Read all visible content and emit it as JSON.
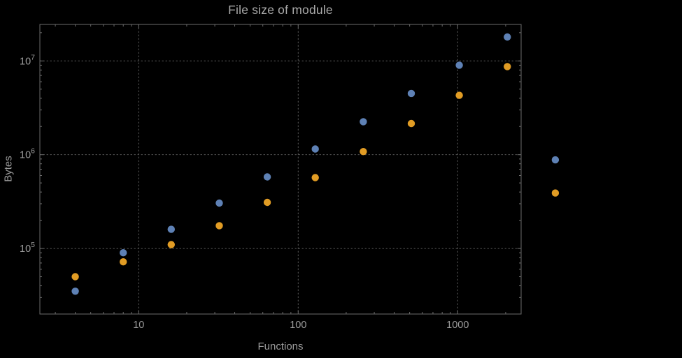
{
  "chart_data": {
    "type": "scatter",
    "title": "File size of module",
    "xlabel": "Functions",
    "ylabel": "Bytes",
    "x_scale": "log",
    "y_scale": "log",
    "x_range": [
      2.4,
      2500
    ],
    "y_range": [
      20000,
      24500000
    ],
    "grid": true,
    "frame": true,
    "legend": "none",
    "x_ticks": [
      {
        "value": 10,
        "label": "10"
      },
      {
        "value": 100,
        "label": "100"
      },
      {
        "value": 1000,
        "label": "1000"
      }
    ],
    "y_ticks": [
      {
        "value": 100000,
        "base": "10",
        "exp": "5"
      },
      {
        "value": 1000000,
        "base": "10",
        "exp": "6"
      },
      {
        "value": 10000000,
        "base": "10",
        "exp": "7"
      }
    ],
    "colors": {
      "frame": "#6c6c6c",
      "grid": "#5b5b5b",
      "tick_text": "#9c9c9c",
      "title_text": "#aaaaaa",
      "series1": "#5E81B5",
      "series2": "#E19C24"
    },
    "series": [
      {
        "name": "series-1-blue",
        "color": "#5E81B5",
        "points": [
          [
            4,
            35000
          ],
          [
            8,
            90000
          ],
          [
            16,
            160000
          ],
          [
            32,
            305000
          ],
          [
            64,
            580000
          ],
          [
            128,
            1150000
          ],
          [
            256,
            2250000
          ],
          [
            512,
            4500000
          ],
          [
            1024,
            9000000
          ],
          [
            2048,
            18000000
          ],
          [
            4096,
            880000
          ]
        ]
      },
      {
        "name": "series-2-orange",
        "color": "#E19C24",
        "points": [
          [
            4,
            50000
          ],
          [
            8,
            72000
          ],
          [
            16,
            110000
          ],
          [
            32,
            175000
          ],
          [
            64,
            310000
          ],
          [
            128,
            570000
          ],
          [
            256,
            1080000
          ],
          [
            512,
            2150000
          ],
          [
            1024,
            4300000
          ],
          [
            2048,
            8700000
          ],
          [
            4096,
            390000
          ]
        ]
      }
    ]
  }
}
